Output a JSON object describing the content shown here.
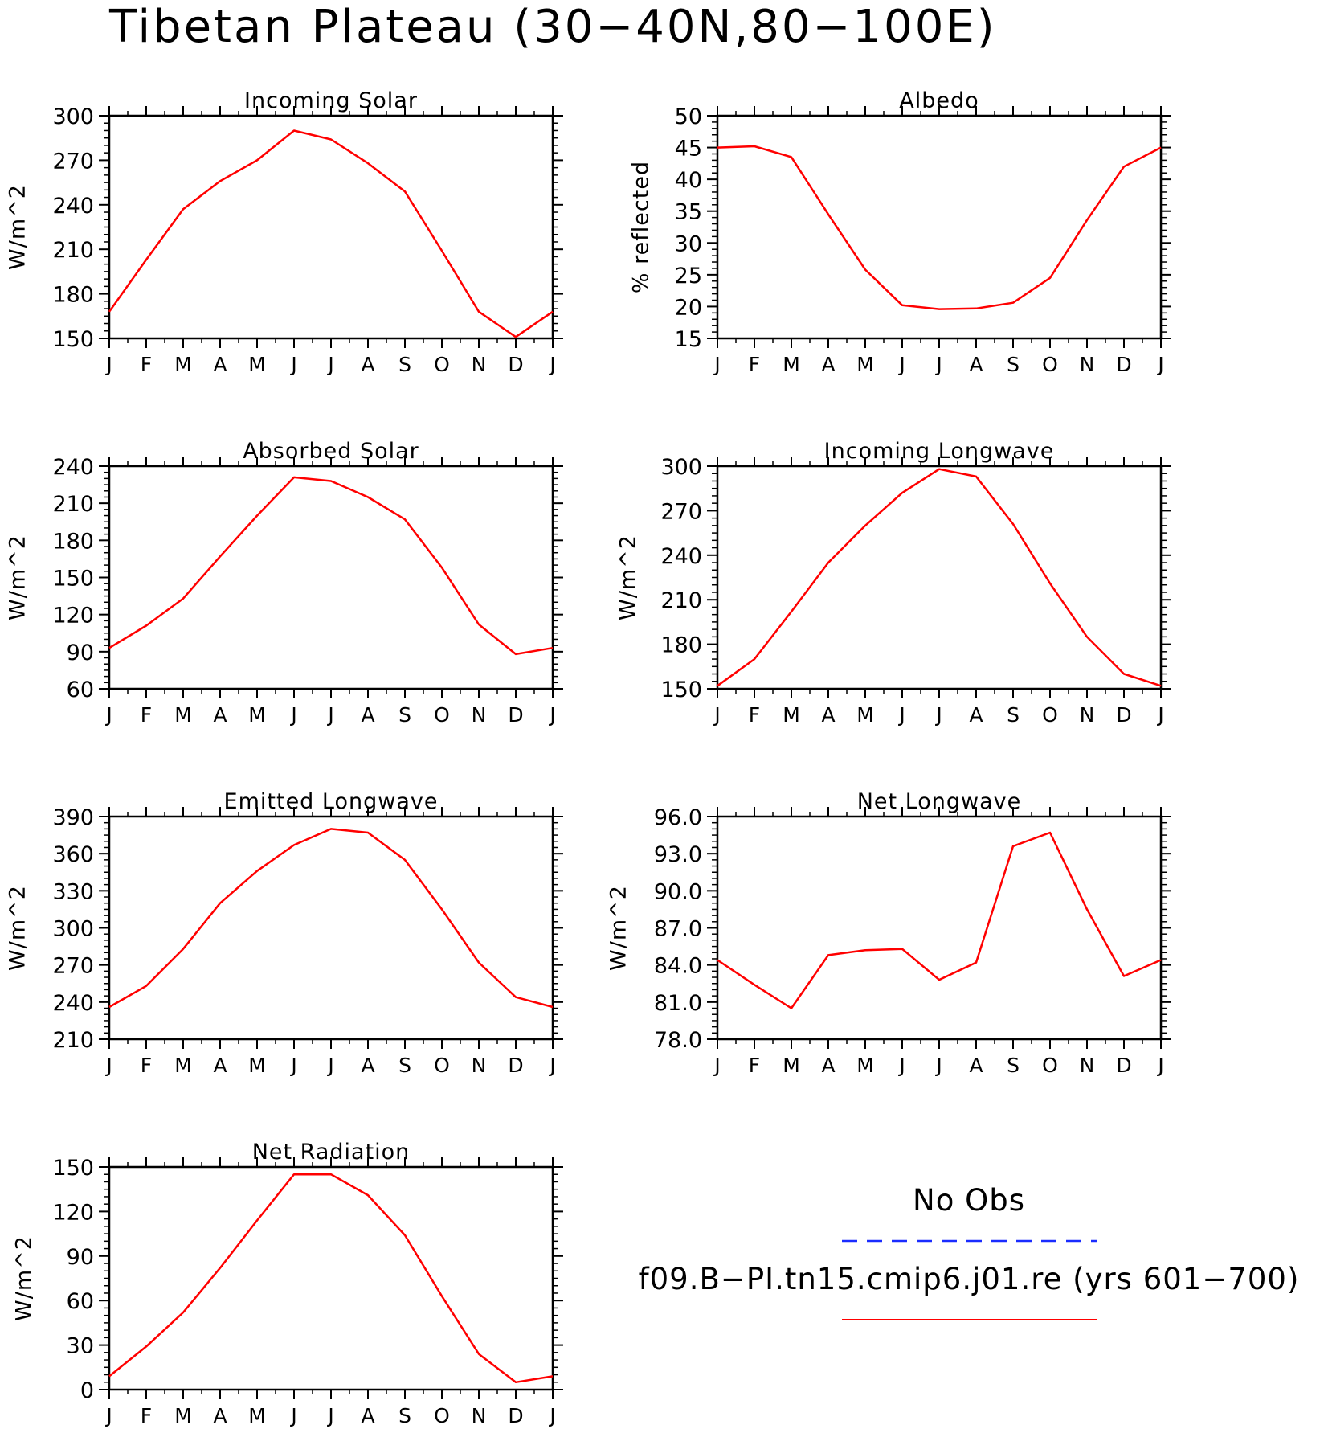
{
  "figure": {
    "title": "Tibetan Plateau (30−40N,80−100E)"
  },
  "months": [
    "J",
    "F",
    "M",
    "A",
    "M",
    "J",
    "J",
    "A",
    "S",
    "O",
    "N",
    "D",
    "J"
  ],
  "colors": {
    "model_line": "#ff0000",
    "obs_line": "#1a2cff",
    "axis": "#000000"
  },
  "chart_data": [
    {
      "type": "line",
      "title": "Incoming Solar",
      "ylabel": "W/m^2",
      "ylim": [
        150,
        300
      ],
      "yticks": [
        150,
        180,
        210,
        240,
        270,
        300
      ],
      "ytick_labels": [
        "150",
        "180",
        "210",
        "240",
        "270",
        "300"
      ],
      "yminor": 6,
      "x": [
        "J",
        "F",
        "M",
        "A",
        "M",
        "J",
        "J",
        "A",
        "S",
        "O",
        "N",
        "D",
        "J"
      ],
      "series": [
        {
          "name": "f09.B−PI.tn15.cmip6.j01.re (yrs 601−700)",
          "values": [
            168,
            203,
            237,
            256,
            270,
            290,
            284,
            268,
            249,
            209,
            168,
            151,
            168
          ]
        }
      ]
    },
    {
      "type": "line",
      "title": "Albedo",
      "ylabel": "% reflected",
      "ylim": [
        15,
        50
      ],
      "yticks": [
        15,
        20,
        25,
        30,
        35,
        40,
        45,
        50
      ],
      "ytick_labels": [
        "15",
        "20",
        "25",
        "30",
        "35",
        "40",
        "45",
        "50"
      ],
      "yminor": 5,
      "x": [
        "J",
        "F",
        "M",
        "A",
        "M",
        "J",
        "J",
        "A",
        "S",
        "O",
        "N",
        "D",
        "J"
      ],
      "series": [
        {
          "name": "f09.B−PI.tn15.cmip6.j01.re (yrs 601−700)",
          "values": [
            45.0,
            45.2,
            43.5,
            34.5,
            25.8,
            20.2,
            19.6,
            19.7,
            20.6,
            24.5,
            33.6,
            42.0,
            45.0
          ]
        }
      ]
    },
    {
      "type": "line",
      "title": "Absorbed Solar",
      "ylabel": "W/m^2",
      "ylim": [
        60,
        240
      ],
      "yticks": [
        60,
        90,
        120,
        150,
        180,
        210,
        240
      ],
      "ytick_labels": [
        "60",
        "90",
        "120",
        "150",
        "180",
        "210",
        "240"
      ],
      "yminor": 6,
      "x": [
        "J",
        "F",
        "M",
        "A",
        "M",
        "J",
        "J",
        "A",
        "S",
        "O",
        "N",
        "D",
        "J"
      ],
      "series": [
        {
          "name": "f09.B−PI.tn15.cmip6.j01.re (yrs 601−700)",
          "values": [
            93,
            111,
            133,
            167,
            200,
            231,
            228,
            215,
            197,
            158,
            112,
            88,
            93
          ]
        }
      ]
    },
    {
      "type": "line",
      "title": "Incoming Longwave",
      "ylabel": "W/m^2",
      "ylim": [
        150,
        300
      ],
      "yticks": [
        150,
        180,
        210,
        240,
        270,
        300
      ],
      "ytick_labels": [
        "150",
        "180",
        "210",
        "240",
        "270",
        "300"
      ],
      "yminor": 6,
      "x": [
        "J",
        "F",
        "M",
        "A",
        "M",
        "J",
        "J",
        "A",
        "S",
        "O",
        "N",
        "D",
        "J"
      ],
      "series": [
        {
          "name": "f09.B−PI.tn15.cmip6.j01.re (yrs 601−700)",
          "values": [
            152,
            170,
            202,
            235,
            260,
            282,
            298,
            293,
            261,
            221,
            185,
            160,
            152
          ]
        }
      ]
    },
    {
      "type": "line",
      "title": "Emitted Longwave",
      "ylabel": "W/m^2",
      "ylim": [
        210,
        390
      ],
      "yticks": [
        210,
        240,
        270,
        300,
        330,
        360,
        390
      ],
      "ytick_labels": [
        "210",
        "240",
        "270",
        "300",
        "330",
        "360",
        "390"
      ],
      "yminor": 6,
      "x": [
        "J",
        "F",
        "M",
        "A",
        "M",
        "J",
        "J",
        "A",
        "S",
        "O",
        "N",
        "D",
        "J"
      ],
      "series": [
        {
          "name": "f09.B−PI.tn15.cmip6.j01.re (yrs 601−700)",
          "values": [
            236,
            253,
            283,
            320,
            346,
            367,
            380,
            377,
            355,
            315,
            272,
            244,
            236
          ]
        }
      ]
    },
    {
      "type": "line",
      "title": "Net Longwave",
      "ylabel": "W/m^2",
      "ylim": [
        78,
        96
      ],
      "yticks": [
        78,
        81,
        84,
        87,
        90,
        93,
        96
      ],
      "ytick_labels": [
        "78.0",
        "81.0",
        "84.0",
        "87.0",
        "90.0",
        "93.0",
        "96.0"
      ],
      "yminor": 6,
      "x": [
        "J",
        "F",
        "M",
        "A",
        "M",
        "J",
        "J",
        "A",
        "S",
        "O",
        "N",
        "D",
        "J"
      ],
      "series": [
        {
          "name": "f09.B−PI.tn15.cmip6.j01.re (yrs 601−700)",
          "values": [
            84.4,
            82.4,
            80.5,
            84.8,
            85.2,
            85.3,
            82.8,
            84.2,
            93.6,
            94.7,
            88.5,
            83.1,
            84.4
          ]
        }
      ]
    },
    {
      "type": "line",
      "title": "Net Radiation",
      "ylabel": "W/m^2",
      "ylim": [
        0,
        150
      ],
      "yticks": [
        0,
        30,
        60,
        90,
        120,
        150
      ],
      "ytick_labels": [
        "0",
        "30",
        "60",
        "90",
        "120",
        "150"
      ],
      "yminor": 6,
      "x": [
        "J",
        "F",
        "M",
        "A",
        "M",
        "J",
        "J",
        "A",
        "S",
        "O",
        "N",
        "D",
        "J"
      ],
      "series": [
        {
          "name": "f09.B−PI.tn15.cmip6.j01.re (yrs 601−700)",
          "values": [
            9,
            29,
            52,
            82,
            114,
            145,
            145,
            131,
            104,
            63,
            24,
            5,
            9
          ]
        }
      ]
    }
  ],
  "legend": {
    "obs_label": "No Obs",
    "model_label": "f09.B−PI.tn15.cmip6.j01.re (yrs 601−700)"
  }
}
